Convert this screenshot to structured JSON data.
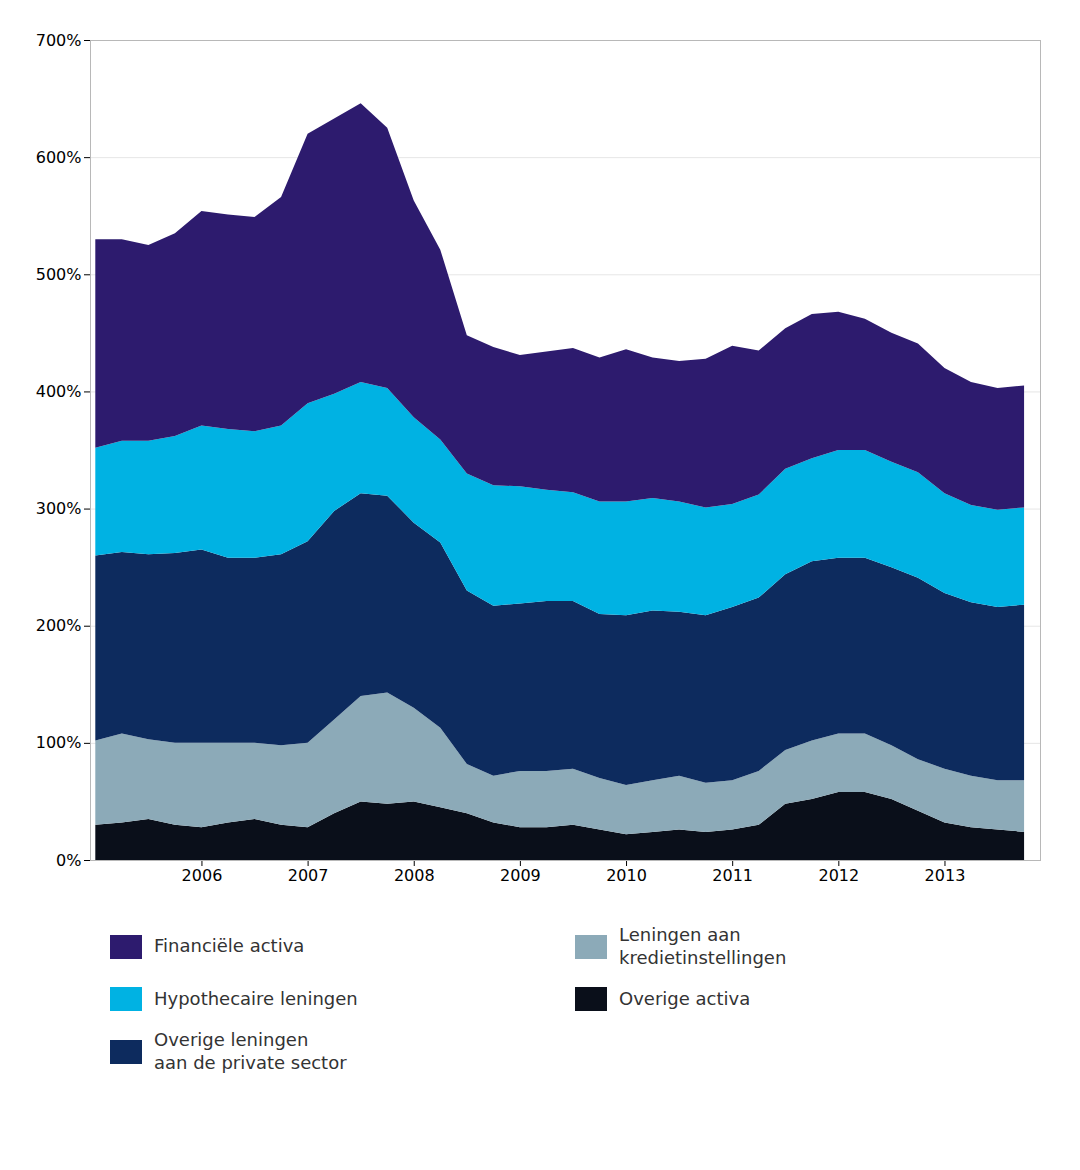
{
  "chart_data": {
    "type": "area",
    "stacked": true,
    "grid": true,
    "x": [
      2005.0,
      2005.25,
      2005.5,
      2005.75,
      2006.0,
      2006.25,
      2006.5,
      2006.75,
      2007.0,
      2007.25,
      2007.5,
      2007.75,
      2008.0,
      2008.25,
      2008.5,
      2008.75,
      2009.0,
      2009.25,
      2009.5,
      2009.75,
      2010.0,
      2010.25,
      2010.5,
      2010.75,
      2011.0,
      2011.25,
      2011.5,
      2011.75,
      2012.0,
      2012.25,
      2012.5,
      2012.75,
      2013.0,
      2013.25,
      2013.5,
      2013.75
    ],
    "series": [
      {
        "name": "Overige activa",
        "color": "#0a0f1a",
        "values": [
          30,
          32,
          35,
          30,
          28,
          32,
          35,
          30,
          28,
          40,
          50,
          48,
          50,
          45,
          40,
          32,
          28,
          28,
          30,
          26,
          22,
          24,
          26,
          24,
          26,
          30,
          48,
          52,
          58,
          58,
          52,
          42,
          32,
          28,
          26,
          24
        ]
      },
      {
        "name": "Leningen aan\nkredietinstellingen",
        "color": "#8caab8",
        "values": [
          72,
          76,
          68,
          70,
          72,
          68,
          65,
          68,
          72,
          80,
          90,
          95,
          80,
          68,
          42,
          40,
          48,
          48,
          48,
          44,
          42,
          44,
          46,
          42,
          42,
          46,
          46,
          50,
          50,
          50,
          46,
          44,
          46,
          44,
          42,
          44
        ]
      },
      {
        "name": "Overige leningen\naan de private sector",
        "color": "#0d2b5e",
        "values": [
          158,
          155,
          158,
          162,
          165,
          158,
          158,
          163,
          172,
          178,
          173,
          168,
          158,
          158,
          148,
          145,
          143,
          145,
          143,
          140,
          145,
          145,
          140,
          143,
          148,
          148,
          150,
          153,
          150,
          150,
          152,
          155,
          150,
          148,
          148,
          150
        ]
      },
      {
        "name": "Hypothecaire leningen",
        "color": "#00b2e3",
        "values": [
          92,
          95,
          97,
          100,
          106,
          110,
          108,
          110,
          118,
          100,
          95,
          92,
          90,
          88,
          100,
          103,
          100,
          95,
          93,
          96,
          97,
          96,
          94,
          92,
          88,
          88,
          90,
          88,
          92,
          92,
          90,
          90,
          85,
          83,
          83,
          83
        ]
      },
      {
        "name": "Financiële activa",
        "color": "#2d1b6e",
        "values": [
          178,
          172,
          167,
          173,
          183,
          183,
          183,
          195,
          230,
          235,
          238,
          222,
          185,
          162,
          118,
          118,
          112,
          118,
          123,
          123,
          130,
          120,
          120,
          127,
          135,
          123,
          120,
          123,
          118,
          112,
          110,
          110,
          107,
          105,
          104,
          104
        ]
      }
    ],
    "ylim": [
      0,
      700
    ],
    "yticks": [
      {
        "value": 0,
        "label": "0%"
      },
      {
        "value": 100,
        "label": "100%"
      },
      {
        "value": 200,
        "label": "200%"
      },
      {
        "value": 300,
        "label": "300%"
      },
      {
        "value": 400,
        "label": "400%"
      },
      {
        "value": 500,
        "label": "500%"
      },
      {
        "value": 600,
        "label": "600%"
      },
      {
        "value": 700,
        "label": "700%"
      }
    ],
    "xlim": [
      2004.95,
      2013.9
    ],
    "xticks": [
      2006,
      2007,
      2008,
      2009,
      2010,
      2011,
      2012,
      2013
    ]
  }
}
